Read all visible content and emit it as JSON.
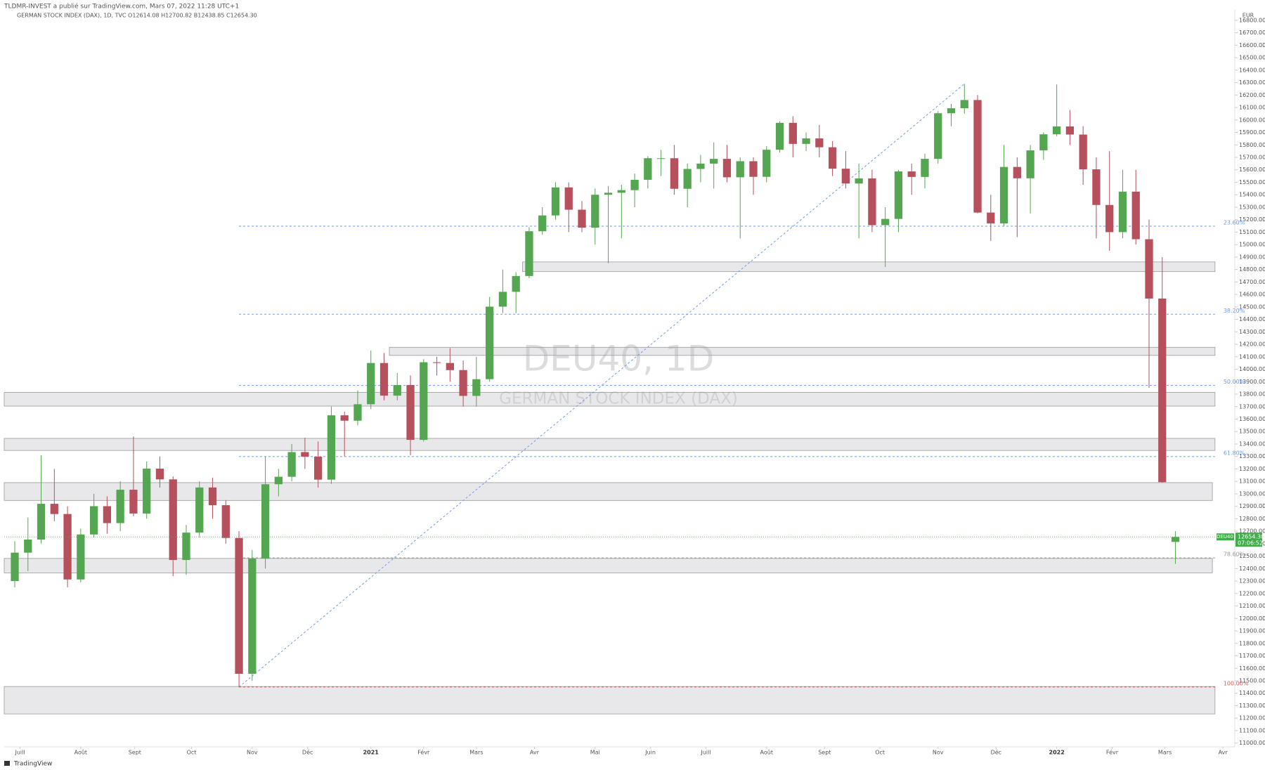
{
  "chart_data": {
    "type": "candlestick",
    "publisher": "TLDMR-INVEST a publié sur TradingView.com, Mars 07, 2022 11:28 UTC+1",
    "title": "GERMAN STOCK INDEX (DAX), 1D, TVC  O12614.08  H12700.82  B12438.85  C12654.30",
    "watermark": "DEU40, 1D",
    "watermark_subtitle": "GERMAN STOCK INDEX (DAX)",
    "y_unit": "EUR",
    "footer": "TradingView",
    "up_color": "#55a650",
    "down_color": "#b5505c",
    "categories": [
      null,
      null,
      null,
      null,
      null,
      null,
      null,
      null,
      null,
      null,
      null,
      null,
      null,
      null,
      null,
      null,
      null,
      null,
      null,
      null,
      null,
      null,
      null,
      null,
      null,
      null,
      null,
      null,
      null,
      null,
      null,
      null,
      null,
      null,
      null,
      null,
      null,
      null,
      null,
      null,
      null,
      null,
      null,
      null,
      null,
      null,
      null,
      null,
      null,
      null,
      null,
      null,
      null,
      null,
      null,
      null,
      null,
      null,
      null,
      null,
      null,
      null,
      null,
      null,
      null,
      null,
      null,
      null,
      null,
      null,
      null,
      null,
      null,
      null,
      null,
      null,
      null,
      null,
      null,
      null,
      null,
      null,
      null,
      null,
      null,
      null,
      null,
      null,
      null
    ],
    "open": [
      12300,
      12528,
      12633,
      12920,
      12838,
      12313,
      12674,
      12901,
      12765,
      13033,
      12842,
      13202,
      13116,
      12469,
      12689,
      13051,
      12909,
      12646,
      11556,
      12480,
      13077,
      13137,
      13335,
      13298,
      13114,
      13630,
      13587,
      13719,
      14050,
      13788,
      13873,
      13433,
      14056,
      14050,
      13993,
      13786,
      13920,
      14502,
      14621,
      14748,
      15107,
      15234,
      15459,
      15280,
      15136,
      15400,
      15416,
      15437,
      15520,
      15693,
      15693,
      15448,
      15607,
      15650,
      15688,
      15540,
      15669,
      15544,
      15761,
      15977,
      15808,
      15852,
      15781,
      15609,
      15490,
      15531,
      15156,
      15206,
      15587,
      15543,
      15688,
      16054,
      16094,
      16160,
      15257,
      15170,
      15623,
      15532,
      15756,
      15885,
      15948,
      15883,
      15604,
      15318,
      15100,
      15425,
      15043,
      14567,
      12614
    ],
    "high": [
      12620,
      12810,
      13310,
      13200,
      12900,
      12720,
      13000,
      12980,
      13100,
      13460,
      13260,
      13300,
      13140,
      12750,
      13100,
      13130,
      12950,
      12700,
      12550,
      13300,
      13200,
      13400,
      13450,
      13420,
      13700,
      13660,
      13830,
      14150,
      14130,
      13970,
      13950,
      14080,
      14100,
      14170,
      14070,
      14100,
      14580,
      14800,
      14780,
      15140,
      15300,
      15500,
      15500,
      15350,
      15450,
      15470,
      15480,
      15570,
      15710,
      15760,
      15800,
      15650,
      15720,
      15820,
      15800,
      15700,
      15700,
      15790,
      15990,
      16030,
      15900,
      15960,
      15830,
      15750,
      15650,
      15600,
      15300,
      15600,
      15650,
      15730,
      16070,
      16130,
      16290,
      16200,
      15400,
      15800,
      15700,
      15800,
      15900,
      16285,
      16080,
      15950,
      15700,
      15750,
      15600,
      15600,
      15200,
      14900,
      12700
    ],
    "low": [
      12250,
      12380,
      12600,
      12780,
      12250,
      12290,
      12650,
      12680,
      12700,
      12820,
      12800,
      13050,
      12340,
      12350,
      12650,
      12800,
      12600,
      11450,
      11500,
      12400,
      12980,
      13100,
      13200,
      13050,
      13080,
      13300,
      13550,
      13680,
      13750,
      13750,
      13310,
      13420,
      13950,
      13900,
      13700,
      13700,
      13900,
      14450,
      14450,
      14730,
      15080,
      15200,
      15100,
      15100,
      15000,
      14850,
      15050,
      15300,
      15450,
      15550,
      15400,
      15300,
      15500,
      15450,
      15500,
      15050,
      15400,
      15500,
      15740,
      15700,
      15750,
      15700,
      15550,
      15450,
      15050,
      15100,
      14820,
      15100,
      15400,
      15450,
      15650,
      15950,
      16050,
      15250,
      15030,
      15150,
      15060,
      15250,
      15680,
      15870,
      15800,
      15480,
      15050,
      14950,
      15050,
      15000,
      13850,
      13090,
      12438
    ],
    "close": [
      12528,
      12633,
      12920,
      12838,
      12313,
      12674,
      12901,
      12765,
      13033,
      12842,
      13202,
      13116,
      12469,
      12689,
      13051,
      12909,
      12646,
      11556,
      12480,
      13077,
      13137,
      13335,
      13298,
      13114,
      13630,
      13587,
      13719,
      14050,
      13788,
      13873,
      13433,
      14056,
      14050,
      13993,
      13786,
      13920,
      14502,
      14621,
      14748,
      15107,
      15234,
      15459,
      15280,
      15136,
      15400,
      15416,
      15437,
      15520,
      15693,
      15693,
      15448,
      15607,
      15650,
      15688,
      15540,
      15669,
      15544,
      15761,
      15977,
      15808,
      15852,
      15781,
      15609,
      15490,
      15531,
      15156,
      15206,
      15587,
      15543,
      15688,
      16054,
      16094,
      16160,
      15257,
      15170,
      15623,
      15532,
      15756,
      15885,
      15948,
      15883,
      15604,
      15318,
      15100,
      15425,
      15043,
      14567,
      13094,
      12654.3
    ],
    "xlim": [
      -0.8,
      92.5
    ],
    "xticks": [
      {
        "value": 0.4,
        "label": "Juill"
      },
      {
        "value": 5,
        "label": "Août"
      },
      {
        "value": 9.1,
        "label": "Sept"
      },
      {
        "value": 13.4,
        "label": "Oct"
      },
      {
        "value": 18,
        "label": "Nov"
      },
      {
        "value": 22.2,
        "label": "Déc"
      },
      {
        "value": 27,
        "label": "2021"
      },
      {
        "value": 31,
        "label": "Févr"
      },
      {
        "value": 35,
        "label": "Mars"
      },
      {
        "value": 39.4,
        "label": "Avr"
      },
      {
        "value": 44,
        "label": "Mai"
      },
      {
        "value": 48.2,
        "label": "Juin"
      },
      {
        "value": 52.4,
        "label": "Juill"
      },
      {
        "value": 57,
        "label": "Août"
      },
      {
        "value": 61.4,
        "label": "Sept"
      },
      {
        "value": 65.6,
        "label": "Oct"
      },
      {
        "value": 70,
        "label": "Nov"
      },
      {
        "value": 74.4,
        "label": "Déc"
      },
      {
        "value": 79,
        "label": "2022"
      },
      {
        "value": 83.2,
        "label": "Févr"
      },
      {
        "value": 87.2,
        "label": "Mars"
      },
      {
        "value": 91.6,
        "label": "Avr"
      }
    ],
    "ylim": [
      10970,
      16850
    ],
    "yticks": [
      {
        "value": 11000,
        "label": "11000.00"
      },
      {
        "value": 11100,
        "label": "11100.00"
      },
      {
        "value": 11200,
        "label": "11200.00"
      },
      {
        "value": 11300,
        "label": "11300.00"
      },
      {
        "value": 11400,
        "label": "11400.00"
      },
      {
        "value": 11500,
        "label": "11500.00"
      },
      {
        "value": 11600,
        "label": "11600.00"
      },
      {
        "value": 11700,
        "label": "11700.00"
      },
      {
        "value": 11800,
        "label": "11800.00"
      },
      {
        "value": 11900,
        "label": "11900.00"
      },
      {
        "value": 12000,
        "label": "12000.00"
      },
      {
        "value": 12100,
        "label": "12100.00"
      },
      {
        "value": 12200,
        "label": "12200.00"
      },
      {
        "value": 12300,
        "label": "12300.00"
      },
      {
        "value": 12400,
        "label": "12400.00"
      },
      {
        "value": 12500,
        "label": "12500.00"
      },
      {
        "value": 12600,
        "label": "12600.00"
      },
      {
        "value": 12700,
        "label": "12700.00"
      },
      {
        "value": 12800,
        "label": "12800.00"
      },
      {
        "value": 12900,
        "label": "12900.00"
      },
      {
        "value": 13000,
        "label": "13000.00"
      },
      {
        "value": 13100,
        "label": "13100.00"
      },
      {
        "value": 13200,
        "label": "13200.00"
      },
      {
        "value": 13300,
        "label": "13300.00"
      },
      {
        "value": 13400,
        "label": "13400.00"
      },
      {
        "value": 13500,
        "label": "13500.00"
      },
      {
        "value": 13600,
        "label": "13600.00"
      },
      {
        "value": 13700,
        "label": "13700.00"
      },
      {
        "value": 13800,
        "label": "13800.00"
      },
      {
        "value": 13900,
        "label": "13900.00"
      },
      {
        "value": 14000,
        "label": "14000.00"
      },
      {
        "value": 14100,
        "label": "14100.00"
      },
      {
        "value": 14200,
        "label": "14200.00"
      },
      {
        "value": 14300,
        "label": "14300.00"
      },
      {
        "value": 14400,
        "label": "14400.00"
      },
      {
        "value": 14500,
        "label": "14500.00"
      },
      {
        "value": 14600,
        "label": "14600.00"
      },
      {
        "value": 14700,
        "label": "14700.00"
      },
      {
        "value": 14800,
        "label": "14800.00"
      },
      {
        "value": 14900,
        "label": "14900.00"
      },
      {
        "value": 15000,
        "label": "15000.00"
      },
      {
        "value": 15100,
        "label": "15100.00"
      },
      {
        "value": 15200,
        "label": "15200.00"
      },
      {
        "value": 15300,
        "label": "15300.00"
      },
      {
        "value": 15400,
        "label": "15400.00"
      },
      {
        "value": 15500,
        "label": "15500.00"
      },
      {
        "value": 15600,
        "label": "15600.00"
      },
      {
        "value": 15700,
        "label": "15700.00"
      },
      {
        "value": 15800,
        "label": "15800.00"
      },
      {
        "value": 15900,
        "label": "15900.00"
      },
      {
        "value": 16000,
        "label": "16000.00"
      },
      {
        "value": 16100,
        "label": "16100.00"
      },
      {
        "value": 16200,
        "label": "16200.00"
      },
      {
        "value": 16300,
        "label": "16300.00"
      },
      {
        "value": 16400,
        "label": "16400.00"
      },
      {
        "value": 16500,
        "label": "16500.00"
      },
      {
        "value": 16600,
        "label": "16600.00"
      },
      {
        "value": 16700,
        "label": "16700.00"
      },
      {
        "value": 16800,
        "label": "16800.00"
      }
    ],
    "zones": [
      {
        "x0": 38.5,
        "x1": 91,
        "y0": 14783,
        "y1": 14861
      },
      {
        "x0": 28.4,
        "x1": 91,
        "y0": 14111,
        "y1": 14176
      },
      {
        "x0": -0.8,
        "x1": 91,
        "y0": 13704,
        "y1": 13814
      },
      {
        "x0": -0.8,
        "x1": 91,
        "y0": 13348,
        "y1": 13445
      },
      {
        "x0": -0.8,
        "x1": 90.8,
        "y0": 12947,
        "y1": 13090
      },
      {
        "x0": -0.8,
        "x1": 90.8,
        "y0": 12366,
        "y1": 12482
      },
      {
        "x0": -0.8,
        "x1": 91,
        "y0": 11234,
        "y1": 11454
      }
    ],
    "fibonacci": {
      "x_start": 17,
      "x_end": 72,
      "low": 11450,
      "high": 16290,
      "line_end": 91,
      "levels": [
        {
          "value": 23.6,
          "label": "23.60%"
        },
        {
          "value": 38.2,
          "label": "38.20%"
        },
        {
          "value": 50,
          "label": "50.00%"
        },
        {
          "value": 61.8,
          "label": "61.80%"
        },
        {
          "value": 78.6,
          "label": "78.60%"
        },
        {
          "value": 100,
          "label": "100.00%"
        }
      ]
    },
    "last_price": {
      "symbol": "DEU40",
      "value": 12654.3,
      "label": "12654.30",
      "countdown": "07:06:52"
    }
  }
}
